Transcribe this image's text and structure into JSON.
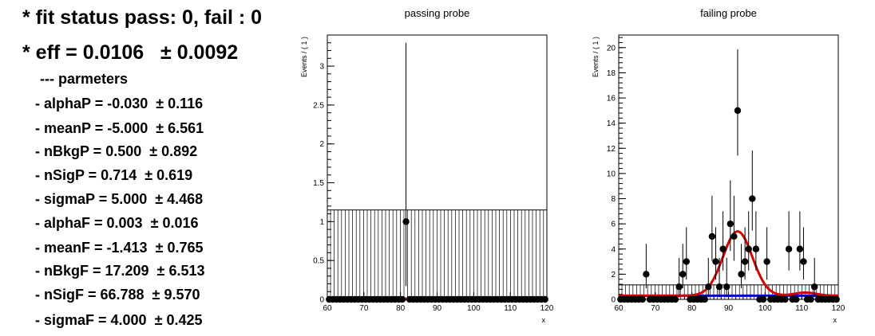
{
  "left_panel": {
    "status": "* fit status pass: 0, fail : 0",
    "eff": "* eff = 0.0106   ± 0.0092",
    "params_header": "--- parmeters",
    "params": [
      "- alphaP = -0.030  ± 0.116",
      "- meanP = -5.000  ± 6.561",
      "- nBkgP = 0.500  ± 0.892",
      "- nSigP = 0.714  ± 0.619",
      "- sigmaP = 5.000  ± 4.468",
      "- alphaF = 0.003  ± 0.016",
      "- meanF = -1.413  ± 0.765",
      "- nBkgF = 17.209  ± 6.513",
      "- nSigF = 66.788  ± 9.570",
      "- sigmaF = 4.000  ± 0.425"
    ]
  },
  "chart_data": [
    {
      "type": "scatter",
      "title": "passing probe",
      "xlabel": "x",
      "ylabel": "Events / ( 1 )",
      "xlim": [
        60,
        120
      ],
      "ylim": [
        0,
        3.4
      ],
      "xticks": [
        60,
        70,
        80,
        90,
        100,
        110,
        120
      ],
      "yticks": [
        0,
        0.5,
        1,
        1.5,
        2,
        2.5,
        3
      ],
      "ytick_labels": [
        "0",
        "0.5",
        "1",
        "1.5",
        "2",
        "2.5",
        "3"
      ],
      "points": [
        {
          "x": 81.5,
          "y": 1,
          "err_low": 0.83,
          "err_high": 2.3
        }
      ],
      "zero_bins": "all other bins 60.5-119.5",
      "band": {
        "low": 0,
        "high": 1.15,
        "hatched": true
      },
      "curves": [
        {
          "color": "#d00000",
          "shape": "tiny gaussian near 88"
        },
        {
          "color": "#0000cc",
          "level": 0
        }
      ]
    },
    {
      "type": "scatter",
      "title": "failing probe",
      "xlabel": "x",
      "ylabel": "Events / ( 1 )",
      "xlim": [
        60,
        120
      ],
      "ylim": [
        0,
        21
      ],
      "xticks": [
        60,
        70,
        80,
        90,
        100,
        110,
        120
      ],
      "yticks": [
        0,
        2,
        4,
        6,
        8,
        10,
        12,
        14,
        16,
        18,
        20
      ],
      "ytick_labels": [
        "0",
        "2",
        "4",
        "6",
        "8",
        "10",
        "12",
        "14",
        "16",
        "18",
        "20"
      ],
      "points": [
        {
          "x": 67.5,
          "y": 2
        },
        {
          "x": 76.5,
          "y": 1
        },
        {
          "x": 77.5,
          "y": 2
        },
        {
          "x": 78.5,
          "y": 3
        },
        {
          "x": 84.5,
          "y": 1
        },
        {
          "x": 85.5,
          "y": 5
        },
        {
          "x": 86.5,
          "y": 3
        },
        {
          "x": 87.5,
          "y": 1
        },
        {
          "x": 88.5,
          "y": 4
        },
        {
          "x": 89.5,
          "y": 1
        },
        {
          "x": 90.5,
          "y": 6
        },
        {
          "x": 91.5,
          "y": 5
        },
        {
          "x": 92.5,
          "y": 15
        },
        {
          "x": 93.5,
          "y": 2
        },
        {
          "x": 94.5,
          "y": 3
        },
        {
          "x": 95.5,
          "y": 4
        },
        {
          "x": 96.5,
          "y": 8
        },
        {
          "x": 97.5,
          "y": 4
        },
        {
          "x": 100.5,
          "y": 3
        },
        {
          "x": 106.5,
          "y": 4
        },
        {
          "x": 109.5,
          "y": 4
        },
        {
          "x": 110.5,
          "y": 3
        },
        {
          "x": 113.5,
          "y": 1
        }
      ],
      "zero_bins": "all other bins 60.5-119.5",
      "band": {
        "low": 0,
        "high": 1.15,
        "hatched": true
      },
      "curves": [
        {
          "color": "#d00000",
          "peak_x": 92.5,
          "peak_y": 5.4,
          "sigma": 4.0,
          "bkg": 0.29
        },
        {
          "color": "#0000cc",
          "level": 0.29
        }
      ]
    }
  ]
}
